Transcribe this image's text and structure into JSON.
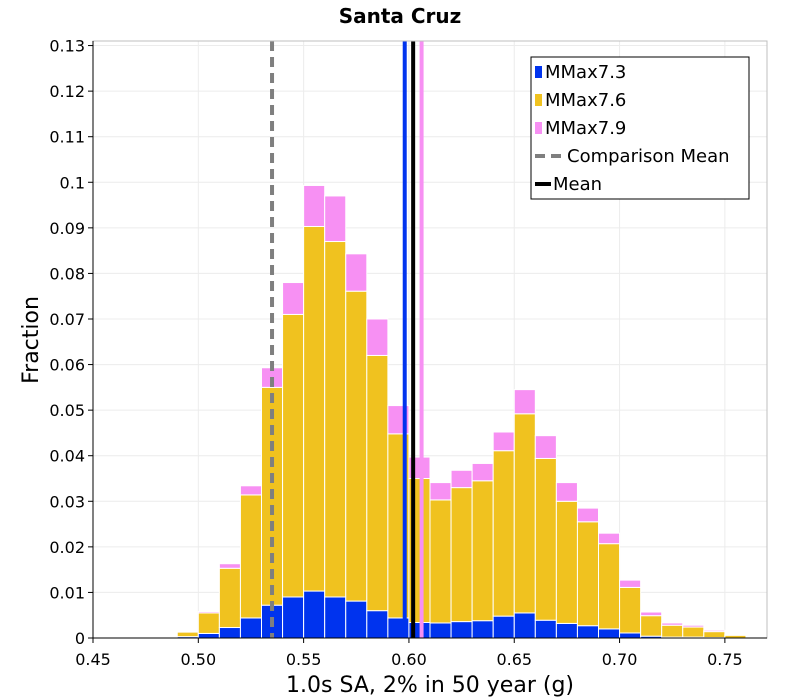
{
  "chart_data": {
    "type": "bar",
    "stacked": true,
    "title": "Santa Cruz",
    "xlabel": "1.0s SA, 2% in 50 year (g)",
    "ylabel": "Fraction",
    "xlim": [
      0.45,
      0.77
    ],
    "ylim": [
      0,
      0.131
    ],
    "xticks": [
      0.45,
      0.5,
      0.55,
      0.6,
      0.65,
      0.7,
      0.75
    ],
    "xtick_labels": [
      "0.45",
      "0.50",
      "0.55",
      "0.60",
      "0.65",
      "0.70",
      "0.75"
    ],
    "yticks": [
      0,
      0.01,
      0.02,
      0.03,
      0.04,
      0.05,
      0.06,
      0.07,
      0.08,
      0.09,
      0.1,
      0.11,
      0.12,
      0.13
    ],
    "ytick_labels": [
      "0",
      "0.01",
      "0.02",
      "0.03",
      "0.04",
      "0.05",
      "0.06",
      "0.07",
      "0.08",
      "0.09",
      "0.1",
      "0.11",
      "0.12",
      "0.13"
    ],
    "grid": true,
    "legend_position": "top-right",
    "bin_width": 0.01,
    "bin_centers": [
      0.485,
      0.495,
      0.505,
      0.515,
      0.525,
      0.535,
      0.545,
      0.555,
      0.565,
      0.575,
      0.585,
      0.595,
      0.605,
      0.615,
      0.625,
      0.635,
      0.645,
      0.655,
      0.665,
      0.675,
      0.685,
      0.695,
      0.705,
      0.715,
      0.725,
      0.735,
      0.745,
      0.755
    ],
    "series": [
      {
        "name": "MMax7.3",
        "color": "#0033ee",
        "values": [
          0.0,
          0.0003,
          0.001,
          0.0023,
          0.0044,
          0.0072,
          0.009,
          0.0103,
          0.009,
          0.0081,
          0.006,
          0.0044,
          0.0034,
          0.0033,
          0.0036,
          0.0038,
          0.0048,
          0.0055,
          0.0039,
          0.0032,
          0.0027,
          0.002,
          0.0011,
          0.0004,
          0.0002,
          0.0002,
          0.0001,
          0.0
        ]
      },
      {
        "name": "MMax7.6",
        "color": "#f0c21f",
        "values": [
          0.0002,
          0.001,
          0.0045,
          0.013,
          0.027,
          0.0478,
          0.062,
          0.08,
          0.078,
          0.068,
          0.056,
          0.0404,
          0.0316,
          0.027,
          0.0294,
          0.0307,
          0.0363,
          0.0437,
          0.0355,
          0.0268,
          0.0228,
          0.0187,
          0.01,
          0.0045,
          0.0026,
          0.0022,
          0.0013,
          0.0006
        ]
      },
      {
        "name": "MMax7.9",
        "color": "#f790f3",
        "values": [
          0.0,
          0.0002,
          0.0003,
          0.001,
          0.002,
          0.0043,
          0.007,
          0.009,
          0.01,
          0.0082,
          0.008,
          0.0062,
          0.0047,
          0.0038,
          0.0038,
          0.0038,
          0.0041,
          0.0053,
          0.005,
          0.0041,
          0.003,
          0.0023,
          0.0016,
          0.0008,
          0.0005,
          0.0004,
          0.0003,
          0.0002
        ]
      }
    ],
    "vertical_lines": [
      {
        "name": "MMax7.3",
        "x": 0.598,
        "color": "#0033ee",
        "style": "solid"
      },
      {
        "name": "MMax7.9",
        "x": 0.606,
        "color": "#f790f3",
        "style": "solid"
      },
      {
        "name": "Comparison Mean",
        "x": 0.535,
        "color": "#7f7f7f",
        "style": "dashed"
      },
      {
        "name": "Mean",
        "x": 0.602,
        "color": "#000000",
        "style": "solid"
      }
    ],
    "legend": [
      {
        "label": "MMax7.3",
        "color": "#0033ee",
        "kind": "patch"
      },
      {
        "label": "MMax7.6",
        "color": "#f0c21f",
        "kind": "patch"
      },
      {
        "label": "MMax7.9",
        "color": "#f790f3",
        "kind": "patch"
      },
      {
        "label": "Comparison Mean",
        "color": "#7f7f7f",
        "kind": "dashed-line"
      },
      {
        "label": "Mean",
        "color": "#000000",
        "kind": "line"
      }
    ]
  }
}
